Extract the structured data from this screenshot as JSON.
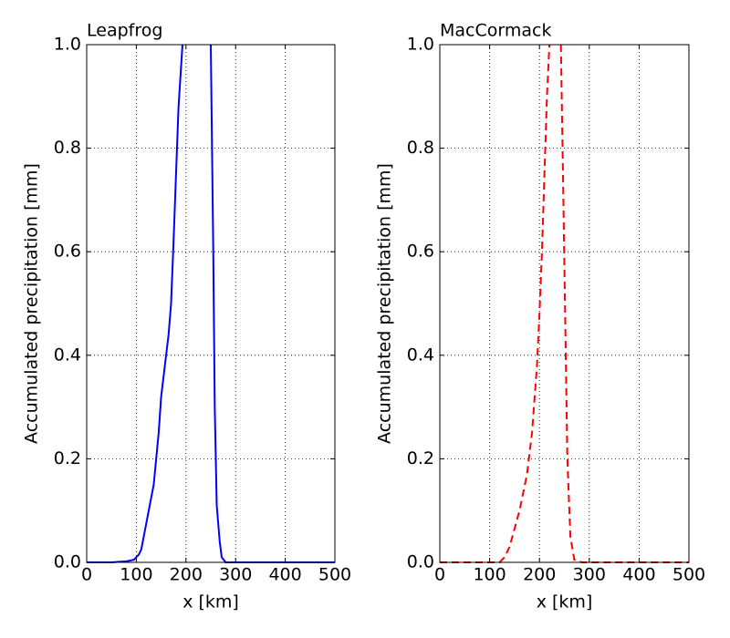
{
  "chart_data": [
    {
      "type": "line",
      "title": "Leapfrog",
      "xlabel": "x [km]",
      "ylabel": "Accumulated precipitation [mm]",
      "x": [
        0,
        50,
        80,
        95,
        105,
        110,
        115,
        125,
        135,
        145,
        150,
        160,
        165,
        170,
        175,
        180,
        185,
        193,
        220,
        250,
        255,
        258,
        262,
        268,
        272,
        280,
        500
      ],
      "series": [
        {
          "color": "#0000ff",
          "dash": "solid",
          "values": [
            0,
            0,
            0.002,
            0.005,
            0.015,
            0.025,
            0.05,
            0.1,
            0.15,
            0.25,
            0.32,
            0.4,
            0.44,
            0.5,
            0.62,
            0.75,
            0.88,
            1.0,
            null,
            1.0,
            0.6,
            0.3,
            0.11,
            0.04,
            0.01,
            0,
            0
          ]
        }
      ],
      "xlim": [
        0,
        500
      ],
      "ylim": [
        0,
        1.0
      ],
      "xticks": [
        0,
        100,
        200,
        300,
        400,
        500
      ],
      "yticks": [
        {
          "value": 0,
          "label": "0.0"
        },
        0.2,
        0.4,
        0.6,
        0.8,
        {
          "value": 1,
          "label": "1.0"
        }
      ],
      "grid": true
    },
    {
      "type": "line",
      "title": "MacCormack",
      "xlabel": "x [km]",
      "ylabel": "Accumulated precipitation [mm]",
      "x": [
        0,
        120,
        130,
        140,
        160,
        175,
        185,
        195,
        200,
        205,
        210,
        215,
        220,
        232,
        243,
        248,
        252,
        256,
        262,
        270,
        285,
        300,
        500
      ],
      "series": [
        {
          "color": "#ff0000",
          "dash": "dashed",
          "values": [
            0,
            0,
            0.01,
            0.03,
            0.1,
            0.17,
            0.25,
            0.38,
            0.48,
            0.6,
            0.75,
            0.9,
            1.0,
            null,
            1.0,
            0.7,
            0.45,
            0.2,
            0.05,
            0.005,
            0,
            0,
            0
          ]
        }
      ],
      "xlim": [
        0,
        500
      ],
      "ylim": [
        0,
        1.0
      ],
      "xticks": [
        0,
        100,
        200,
        300,
        400,
        500
      ],
      "yticks": [
        {
          "value": 0,
          "label": "0.0"
        },
        0.2,
        0.4,
        0.6,
        0.8,
        {
          "value": 1,
          "label": "1.0"
        }
      ],
      "grid": true
    }
  ]
}
